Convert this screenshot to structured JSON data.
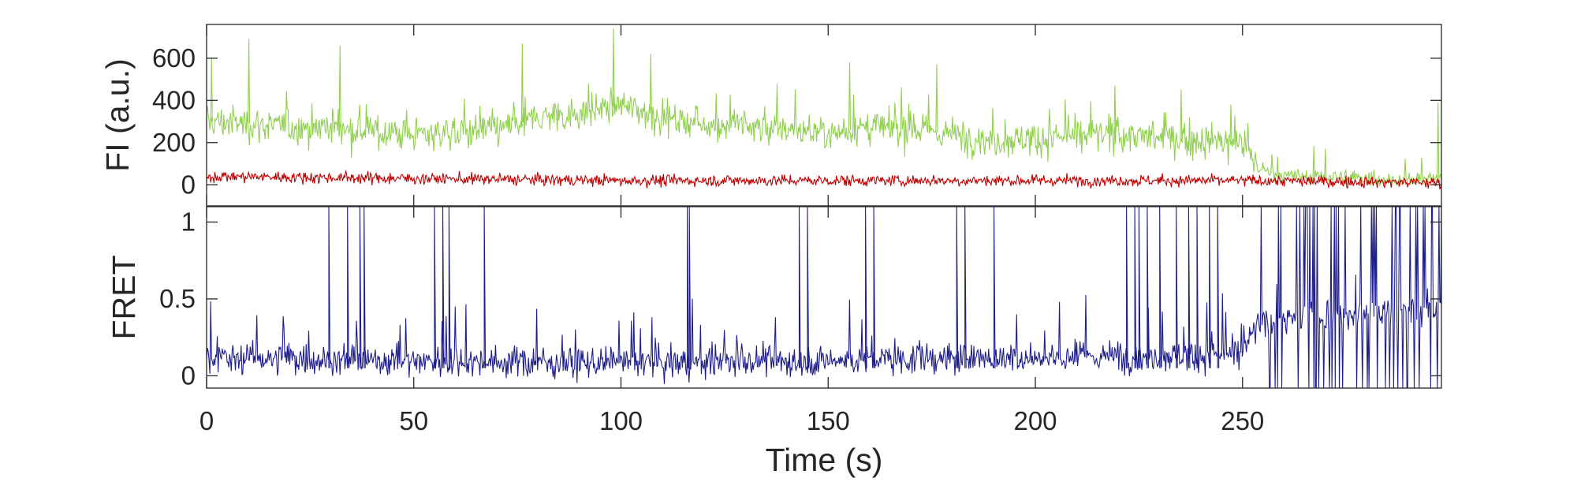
{
  "chart_data": [
    {
      "type": "line",
      "title": "",
      "xlabel": "",
      "ylabel": "FI (a.u.)",
      "xlim": [
        0,
        298
      ],
      "ylim": [
        -100,
        760
      ],
      "yticks": [
        0,
        200,
        400,
        600
      ],
      "ytick_labels": [
        "0",
        "200",
        "400",
        "600"
      ],
      "grid": false,
      "legend": "none",
      "series": [
        {
          "color": "#92d050",
          "x": [
            0,
            10,
            20,
            30,
            40,
            50,
            60,
            70,
            80,
            90,
            100,
            110,
            120,
            130,
            140,
            150,
            160,
            170,
            180,
            190,
            200,
            210,
            220,
            230,
            240,
            250,
            254,
            260,
            270,
            280,
            290,
            298
          ],
          "values": [
            300,
            290,
            270,
            280,
            250,
            240,
            250,
            260,
            320,
            340,
            380,
            320,
            290,
            280,
            260,
            250,
            270,
            260,
            240,
            210,
            220,
            230,
            240,
            220,
            210,
            200,
            80,
            40,
            40,
            30,
            20,
            30
          ],
          "peaks": [
            [
              1,
              600
            ],
            [
              10,
              690
            ],
            [
              32,
              660
            ],
            [
              76,
              670
            ],
            [
              98,
              740
            ],
            [
              107,
              620
            ],
            [
              155,
              580
            ],
            [
              176,
              570
            ],
            [
              219,
              470
            ],
            [
              235,
              450
            ],
            [
              247,
              380
            ],
            [
              297,
              390
            ]
          ]
        },
        {
          "color": "#c00000",
          "x": [
            0,
            50,
            100,
            150,
            200,
            250,
            298
          ],
          "values": [
            40,
            30,
            20,
            20,
            20,
            20,
            10
          ]
        }
      ]
    },
    {
      "type": "line",
      "title": "",
      "xlabel": "Time (s)",
      "ylabel": "FRET",
      "xlim": [
        0,
        298
      ],
      "ylim": [
        -0.08,
        1.1
      ],
      "xticks": [
        0,
        50,
        100,
        150,
        200,
        250
      ],
      "xtick_labels": [
        "0",
        "50",
        "100",
        "150",
        "200",
        "250"
      ],
      "yticks": [
        0,
        0.5,
        1
      ],
      "ytick_labels": [
        "0",
        "0.5",
        "1"
      ],
      "grid": false,
      "legend": "none",
      "series": [
        {
          "color": "#1f1f8c",
          "x": [
            0,
            50,
            100,
            150,
            200,
            250,
            254,
            298
          ],
          "values": [
            0.12,
            0.1,
            0.08,
            0.1,
            0.12,
            0.14,
            0.35,
            0.45
          ],
          "spikes_to_1": [
            29.5,
            34,
            37,
            38,
            55,
            57,
            58.5,
            67,
            116,
            116.5,
            143,
            145,
            159,
            161,
            181,
            183,
            190,
            222,
            224,
            225,
            227,
            230,
            234,
            237,
            239,
            242,
            244
          ]
        }
      ]
    }
  ]
}
